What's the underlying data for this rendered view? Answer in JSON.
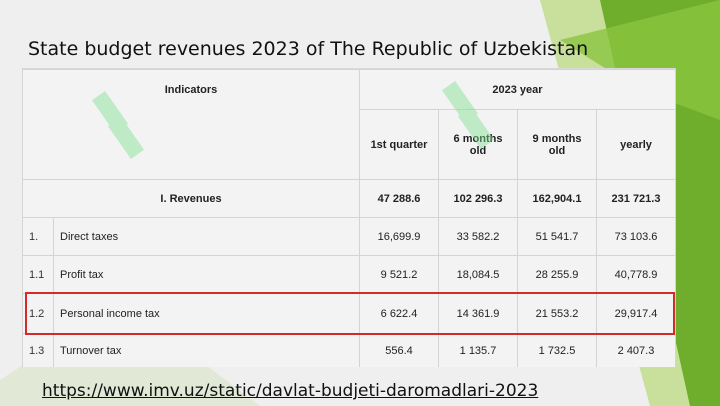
{
  "slide": {
    "title": "State budget revenues 2023 of The Republic of Uzbekistan",
    "link": "https://www.imv.uz/static/davlat-budjeti-daromadlari-2023"
  },
  "table": {
    "header_indicators": "Indicators",
    "header_year": "2023 year",
    "col_q1": "1st quarter",
    "col_6m": "6 months old",
    "col_9m": "9 months old",
    "col_yearly": "yearly",
    "rows": [
      {
        "idx": "",
        "label": "I. Revenues",
        "q1": "47 288.6",
        "m6": "102 296.3",
        "m9": "162,904.1",
        "yearly": "231 721.3"
      },
      {
        "idx": "1.",
        "label": "Direct taxes",
        "q1": "16,699.9",
        "m6": "33 582.2",
        "m9": "51 541.7",
        "yearly": "73 103.6"
      },
      {
        "idx": "1.1",
        "label": "Profit tax",
        "q1": "9 521.2",
        "m6": "18,084.5",
        "m9": "28 255.9",
        "yearly": "40,778.9"
      },
      {
        "idx": "1.2",
        "label": "Personal income tax",
        "q1": "6 622.4",
        "m6": "14 361.9",
        "m9": "21 553.2",
        "yearly": "29,917.4"
      },
      {
        "idx": "1.3",
        "label": "Turnover tax",
        "q1": "556.4",
        "m6": "1 135.7",
        "m9": "1 732.5",
        "yearly": "2 407.3"
      }
    ]
  },
  "colors": {
    "highlight": "#d42a2a",
    "green_dark": "#5a9b26",
    "green_light": "#9fd04a"
  }
}
